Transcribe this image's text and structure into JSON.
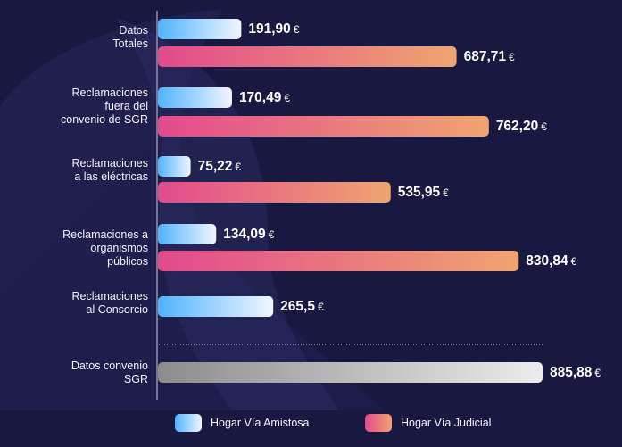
{
  "chart_data": {
    "type": "bar",
    "orientation": "horizontal",
    "categories": [
      "Datos\nTotales",
      "Reclamaciones\nfuera del\nconvenio de SGR",
      "Reclamaciones\na las eléctricas",
      "Reclamaciones a\norganismos\npúblicos",
      "Reclamaciones\nal Consorcio",
      "Datos convenio\nSGR"
    ],
    "series": [
      {
        "name": "Hogar Vía Amistosa",
        "values": [
          191.9,
          170.49,
          75.22,
          134.09,
          265.5,
          null
        ],
        "labels": [
          "191,90",
          "170,49",
          "75,22",
          "134,09",
          "265,5",
          null
        ],
        "colors": [
          "#4fb3ff",
          "#f2f6ff"
        ]
      },
      {
        "name": "Hogar Vía Judicial",
        "values": [
          687.71,
          762.2,
          535.95,
          830.84,
          null,
          null
        ],
        "labels": [
          "687,71",
          "762,20",
          "535,95",
          "830,84",
          null,
          null
        ],
        "colors": [
          "#e24a8d",
          "#efa570"
        ]
      },
      {
        "values": [
          null,
          null,
          null,
          null,
          null,
          885.88
        ],
        "labels": [
          null,
          null,
          null,
          null,
          null,
          "885,88"
        ],
        "colors": [
          "#8c8c8c",
          "#ececec"
        ]
      }
    ],
    "currency": "€",
    "xlim": [
      0,
      885.88
    ],
    "grid": false,
    "legend_position": "bottom"
  },
  "colors": {
    "background": "#191841",
    "axis": "#c9c9d6"
  }
}
